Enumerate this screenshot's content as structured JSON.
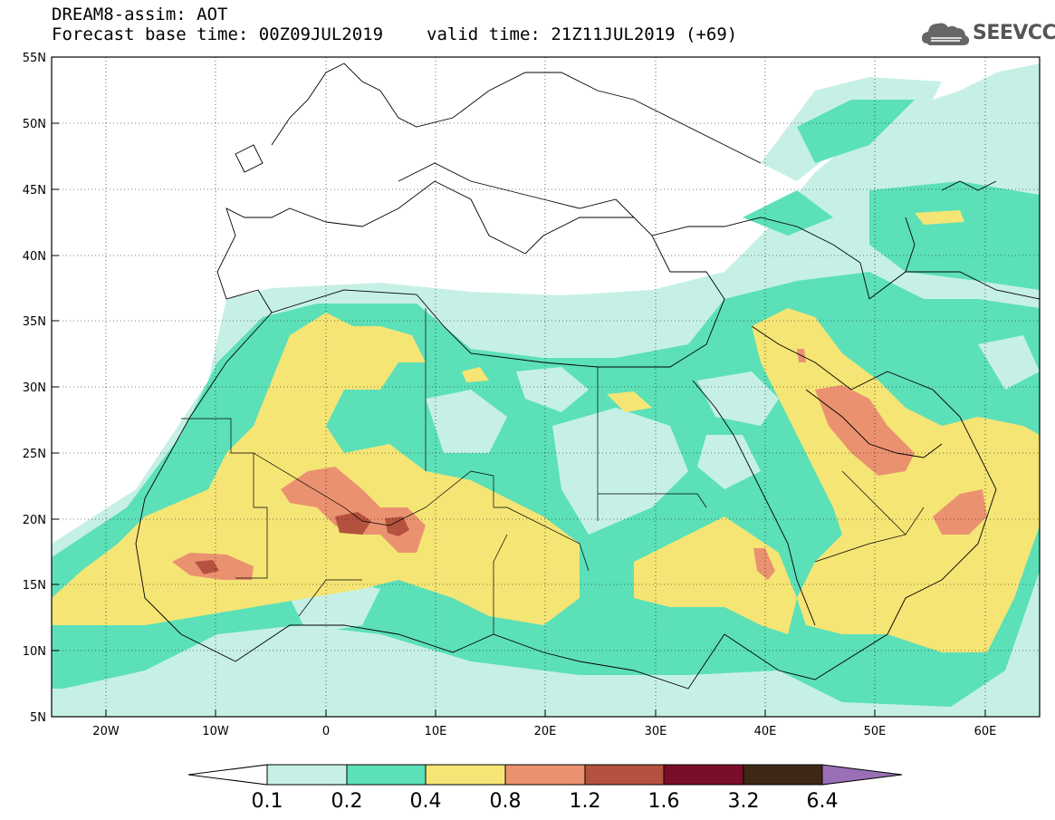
{
  "header": {
    "line1": "DREAM8-assim: AOT",
    "base_time": "Forecast base time: 00Z09JUL2019",
    "valid_time": "valid time: 21Z11JUL2019 (+69)"
  },
  "logo": {
    "text": "SEEVCCC",
    "icon": "cloud-icon"
  },
  "map": {
    "lat_range": [
      5,
      55
    ],
    "lon_range": [
      -25,
      65
    ],
    "lat_ticks": [
      "55N",
      "50N",
      "45N",
      "40N",
      "35N",
      "30N",
      "25N",
      "20N",
      "15N",
      "10N",
      "5N"
    ],
    "lon_ticks": [
      "20W",
      "10W",
      "0",
      "10E",
      "20E",
      "30E",
      "40E",
      "50E",
      "60E"
    ],
    "grid": "dotted"
  },
  "colorbar": {
    "labels": [
      "0.1",
      "0.2",
      "0.4",
      "0.8",
      "1.2",
      "1.6",
      "3.2",
      "6.4"
    ],
    "colors": [
      "#ffffff",
      "#c6f0e6",
      "#5ce0b8",
      "#f5e575",
      "#ea9270",
      "#b4523f",
      "#7a0e28",
      "#3f2716",
      "#9a6fb6"
    ]
  }
}
